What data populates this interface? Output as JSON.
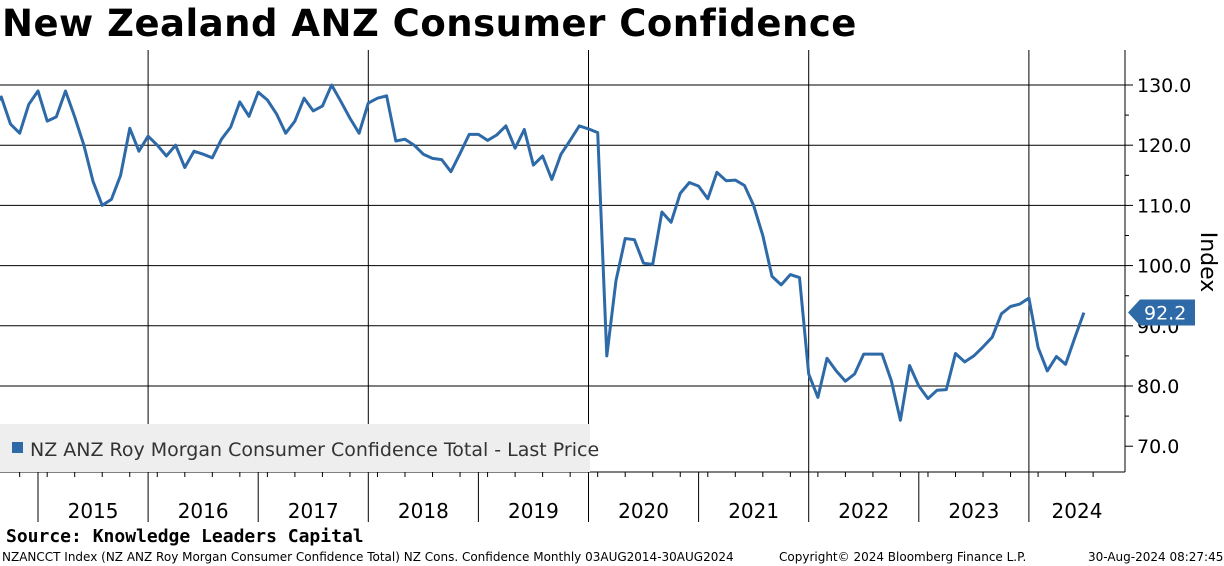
{
  "header": {
    "title": "New Zealand ANZ Consumer Confidence"
  },
  "source": "Source: Knowledge Leaders Capital",
  "footer": {
    "left": "NZANCCT Index (NZ ANZ Roy Morgan Consumer Confidence Total) NZ Cons. Confidence  Monthly 03AUG2014-30AUG2024",
    "center": "Copyright© 2024 Bloomberg Finance L.P.",
    "right": "30-Aug-2024 08:27:45"
  },
  "colors": {
    "line": "#2e6aa8",
    "last_label_bg": "#2e6aa8",
    "legend_bg": "#eeeeee"
  },
  "chart_data": {
    "type": "line",
    "title": "New Zealand ANZ Consumer Confidence",
    "ylabel": "Index",
    "ylim": [
      65,
      133
    ],
    "yaxis_position": "right",
    "yticks": [
      70,
      80,
      90,
      100,
      110,
      120,
      130
    ],
    "ytick_labels": [
      "70.0",
      "80.0",
      "90.0",
      "100.0",
      "110.0",
      "120.0",
      "130.0"
    ],
    "xticks": [
      "2015",
      "2016",
      "2017",
      "2018",
      "2019",
      "2020",
      "2021",
      "2022",
      "2023",
      "2024"
    ],
    "grid": true,
    "legend": {
      "position": "bottom-left",
      "entries": [
        "NZ ANZ Roy Morgan Consumer Confidence Total - Last Price"
      ]
    },
    "last_value_label": "92.2",
    "series": [
      {
        "name": "NZ ANZ Roy Morgan Consumer Confidence Total - Last Price",
        "x_start": "2014-08",
        "frequency": "monthly",
        "values": [
          126.0,
          128.0,
          123.5,
          122.0,
          126.8,
          129.0,
          124.0,
          124.7,
          129.0,
          124.7,
          120.0,
          114.0,
          110.0,
          111.0,
          115.0,
          122.8,
          119.0,
          121.5,
          120.0,
          118.2,
          120.0,
          116.3,
          119.0,
          118.5,
          117.9,
          121.0,
          123.0,
          127.2,
          124.8,
          128.8,
          127.5,
          125.2,
          122.0,
          124.0,
          127.8,
          125.7,
          126.5,
          130.0,
          127.3,
          124.5,
          122.0,
          127.0,
          127.8,
          128.2,
          120.7,
          121.0,
          120.0,
          118.5,
          117.8,
          117.6,
          115.6,
          118.6,
          121.8,
          121.8,
          120.8,
          121.7,
          123.2,
          119.5,
          122.6,
          116.7,
          118.2,
          114.3,
          118.5,
          120.8,
          123.2,
          122.7,
          122.1,
          85.0,
          97.5,
          104.5,
          104.3,
          100.4,
          100.2,
          108.9,
          107.2,
          112.0,
          113.8,
          113.2,
          111.1,
          115.5,
          114.1,
          114.2,
          113.3,
          110.0,
          105.0,
          98.2,
          96.8,
          98.5,
          98.0,
          82.0,
          78.1,
          84.6,
          82.5,
          80.8,
          82.0,
          85.3,
          85.3,
          85.3,
          80.9,
          74.3,
          83.4,
          80.0,
          77.9,
          79.3,
          79.4,
          85.4,
          84.0,
          85.0,
          86.5,
          88.1,
          92.0,
          93.2,
          93.6,
          94.6,
          86.4,
          82.5,
          84.9,
          83.6,
          88.0,
          92.2
        ]
      }
    ]
  }
}
